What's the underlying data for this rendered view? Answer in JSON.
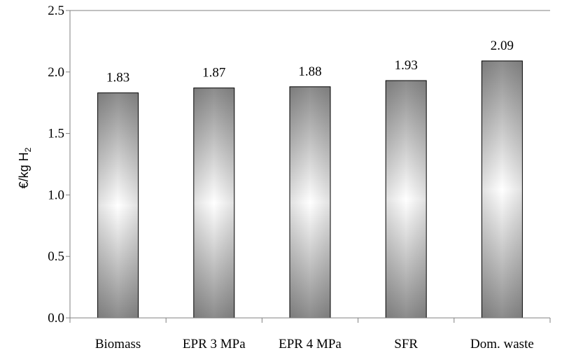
{
  "chart_data": {
    "type": "bar",
    "categories": [
      "Biomass",
      "EPR 3 MPa",
      "EPR 4 MPa",
      "SFR",
      "Dom. waste"
    ],
    "values": [
      1.83,
      1.87,
      1.88,
      1.93,
      2.09
    ],
    "data_labels": [
      "1.83",
      "1.87",
      "1.88",
      "1.93",
      "2.09"
    ],
    "ylabel": {
      "main": "€/kg H",
      "subscript": "2"
    },
    "xlabel": "",
    "ylim": [
      0,
      2.5
    ],
    "yticks": [
      "0.0",
      "0.5",
      "1.0",
      "1.5",
      "2.0",
      "2.5"
    ],
    "grid": false,
    "legend": "none",
    "colors": {
      "bar_edge": "#8c8c8c",
      "bar_light": "#ffffff",
      "axis": "#808080"
    }
  }
}
